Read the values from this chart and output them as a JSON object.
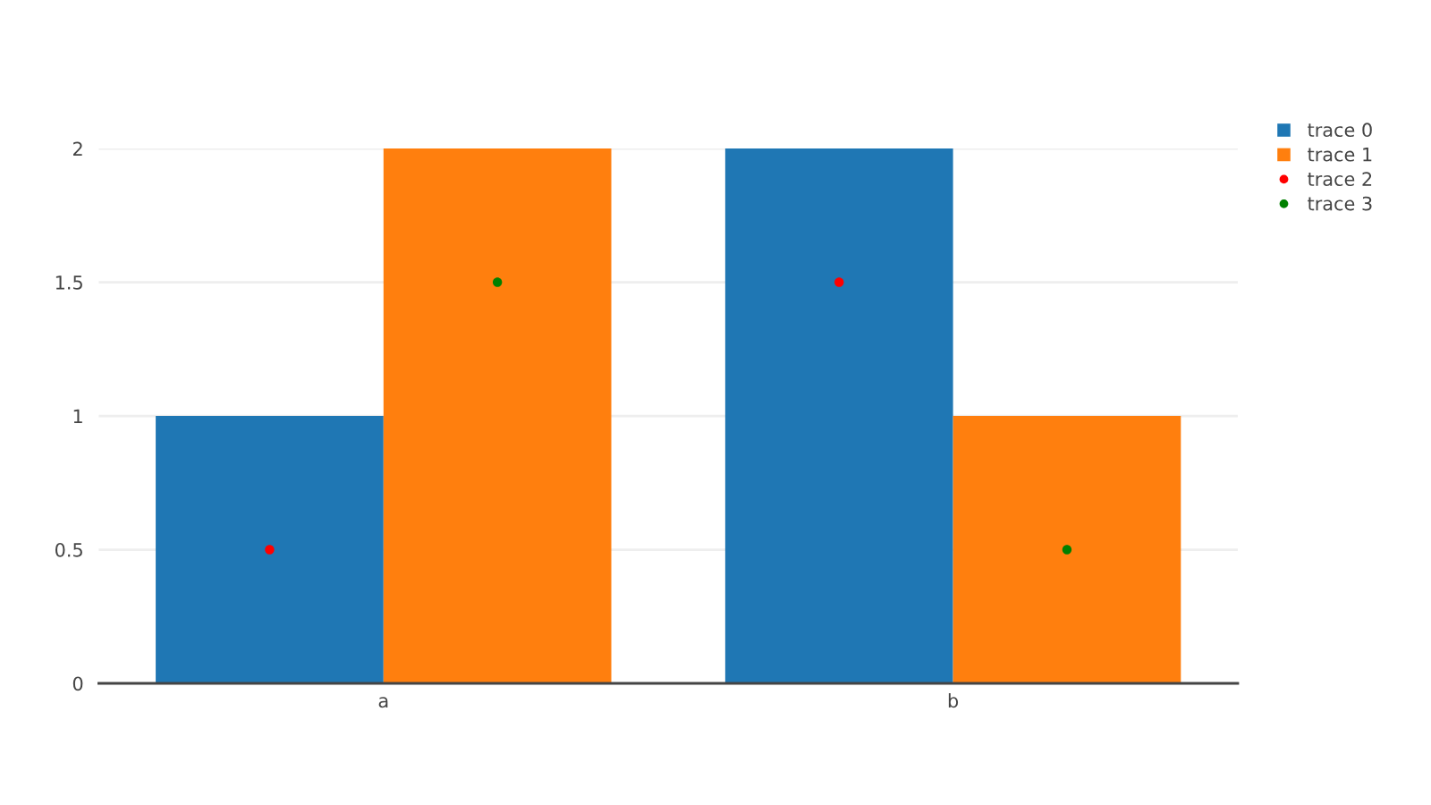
{
  "chart_data": {
    "type": "bar",
    "categories": [
      "a",
      "b"
    ],
    "series": [
      {
        "name": "trace 0",
        "color": "#1f77b4",
        "values": [
          1,
          2
        ]
      },
      {
        "name": "trace 1",
        "color": "#ff7f0e",
        "values": [
          2,
          1
        ]
      },
      {
        "type": "scatter",
        "name": "trace 2",
        "color": "#ff0000",
        "x": [
          "a",
          "b"
        ],
        "values": [
          0.5,
          1.5
        ],
        "marker": "circle"
      },
      {
        "type": "scatter",
        "name": "trace 3",
        "color": "#008000",
        "x": [
          "a",
          "b"
        ],
        "values": [
          1.5,
          0.5
        ],
        "marker": "circle"
      }
    ],
    "ylim": [
      0,
      2
    ],
    "yticks": [
      0,
      0.5,
      1,
      1.5,
      2
    ],
    "grid": "y",
    "legend": "top right"
  }
}
